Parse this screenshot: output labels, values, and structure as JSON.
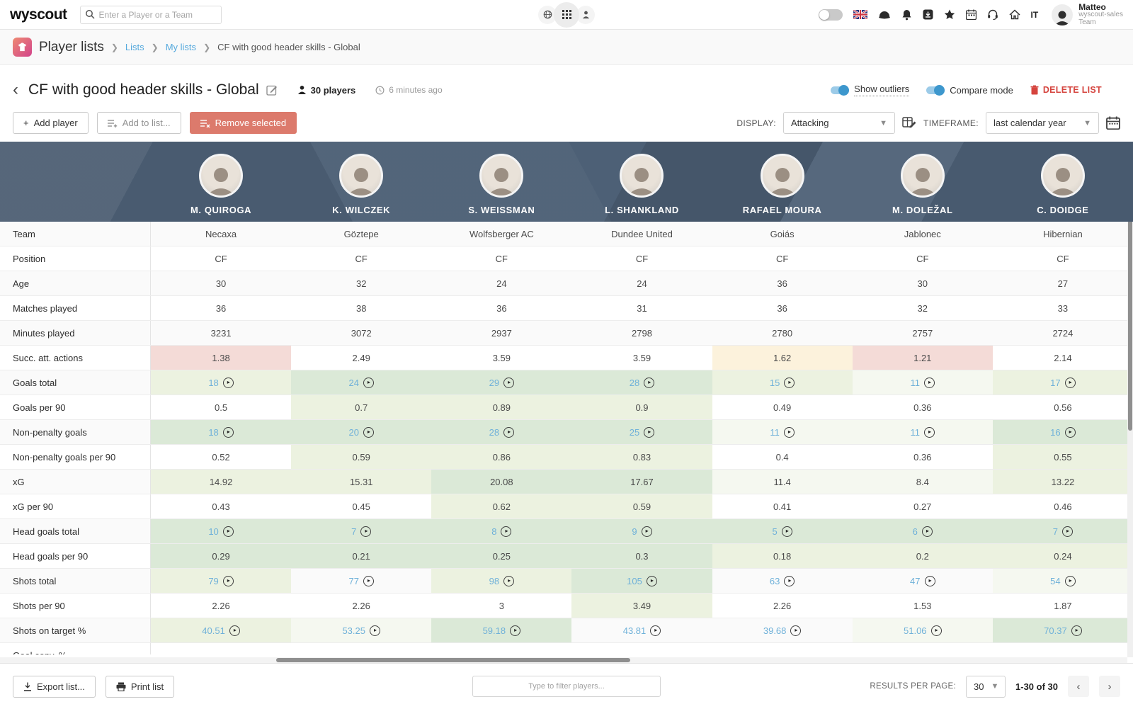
{
  "topbar": {
    "logo": "wyscout",
    "search_placeholder": "Enter a Player or a Team",
    "lang": "IT",
    "user": {
      "name": "Matteo",
      "org_line1": "wyscout-sales",
      "org_line2": "Team"
    }
  },
  "breadcrumb": {
    "root": "Player lists",
    "link1": "Lists",
    "link2": "My lists",
    "current": "CF with good header skills - Global"
  },
  "listheader": {
    "title": "CF with good header skills - Global",
    "players_count": "30 players",
    "updated": "6 minutes ago",
    "show_outliers": "Show outliers",
    "compare_mode": "Compare mode",
    "delete_list": "DELETE LIST"
  },
  "toolbar": {
    "add_player": "Add player",
    "add_plus": "+",
    "add_to_list": "Add to list...",
    "remove_selected": "Remove selected",
    "display_label": "DISPLAY:",
    "display_value": "Attacking",
    "timeframe_label": "TIMEFRAME:",
    "timeframe_value": "last calendar year"
  },
  "table": {
    "players": [
      {
        "name": "M. QUIROGA"
      },
      {
        "name": "K. WILCZEK"
      },
      {
        "name": "S. WEISSMAN"
      },
      {
        "name": "L. SHANKLAND"
      },
      {
        "name": "RAFAEL MOURA"
      },
      {
        "name": "M. DOLEŽAL"
      },
      {
        "name": "C. DOIDGE"
      }
    ],
    "rows": [
      {
        "label": "Team",
        "link": false,
        "values": [
          "Necaxa",
          "Göztepe",
          "Wolfsberger AC",
          "Dundee United",
          "Goiás",
          "Jablonec",
          "Hibernian"
        ],
        "tints": [
          "w",
          "w",
          "w",
          "w",
          "w",
          "w",
          "w"
        ]
      },
      {
        "label": "Position",
        "link": false,
        "values": [
          "CF",
          "CF",
          "CF",
          "CF",
          "CF",
          "CF",
          "CF"
        ],
        "tints": [
          "w",
          "w",
          "w",
          "w",
          "w",
          "w",
          "w"
        ]
      },
      {
        "label": "Age",
        "link": false,
        "values": [
          "30",
          "32",
          "24",
          "24",
          "36",
          "30",
          "27"
        ],
        "tints": [
          "w",
          "w",
          "w",
          "w",
          "w",
          "w",
          "w"
        ]
      },
      {
        "label": "Matches played",
        "link": false,
        "values": [
          "36",
          "38",
          "36",
          "31",
          "36",
          "32",
          "33"
        ],
        "tints": [
          "w",
          "w",
          "w",
          "w",
          "w",
          "w",
          "w"
        ]
      },
      {
        "label": "Minutes played",
        "link": false,
        "values": [
          "3231",
          "3072",
          "2937",
          "2798",
          "2780",
          "2757",
          "2724"
        ],
        "tints": [
          "w",
          "w",
          "w",
          "w",
          "w",
          "w",
          "w"
        ]
      },
      {
        "label": "Succ. att. actions",
        "link": false,
        "values": [
          "1.38",
          "2.49",
          "3.59",
          "3.59",
          "1.62",
          "1.21",
          "2.14"
        ],
        "tints": [
          "pk",
          "w",
          "w",
          "w",
          "yl",
          "pk",
          "w"
        ]
      },
      {
        "label": "Goals total",
        "link": true,
        "values": [
          "18",
          "24",
          "29",
          "28",
          "15",
          "11",
          "17"
        ],
        "tints": [
          "g1",
          "g2",
          "g2",
          "g2",
          "g1",
          "g0",
          "g1"
        ]
      },
      {
        "label": "Goals per 90",
        "link": false,
        "values": [
          "0.5",
          "0.7",
          "0.89",
          "0.9",
          "0.49",
          "0.36",
          "0.56"
        ],
        "tints": [
          "w",
          "g1",
          "g1",
          "g1",
          "w",
          "w",
          "w"
        ]
      },
      {
        "label": "Non-penalty goals",
        "link": true,
        "values": [
          "18",
          "20",
          "28",
          "25",
          "11",
          "11",
          "16"
        ],
        "tints": [
          "g2",
          "g2",
          "g2",
          "g2",
          "g0",
          "g0",
          "g2"
        ]
      },
      {
        "label": "Non-penalty goals per 90",
        "link": false,
        "values": [
          "0.52",
          "0.59",
          "0.86",
          "0.83",
          "0.4",
          "0.36",
          "0.55"
        ],
        "tints": [
          "w",
          "g1",
          "g1",
          "g1",
          "w",
          "w",
          "g1"
        ]
      },
      {
        "label": "xG",
        "link": false,
        "values": [
          "14.92",
          "15.31",
          "20.08",
          "17.67",
          "11.4",
          "8.4",
          "13.22"
        ],
        "tints": [
          "g1",
          "g1",
          "g2",
          "g2",
          "g0",
          "g0",
          "g1"
        ]
      },
      {
        "label": "xG per 90",
        "link": false,
        "values": [
          "0.43",
          "0.45",
          "0.62",
          "0.59",
          "0.41",
          "0.27",
          "0.46"
        ],
        "tints": [
          "w",
          "w",
          "g1",
          "g1",
          "w",
          "w",
          "w"
        ]
      },
      {
        "label": "Head goals total",
        "link": true,
        "values": [
          "10",
          "7",
          "8",
          "9",
          "5",
          "6",
          "7"
        ],
        "tints": [
          "g2",
          "g2",
          "g2",
          "g2",
          "g2",
          "g2",
          "g2"
        ]
      },
      {
        "label": "Head goals per 90",
        "link": false,
        "values": [
          "0.29",
          "0.21",
          "0.25",
          "0.3",
          "0.18",
          "0.2",
          "0.24"
        ],
        "tints": [
          "g2",
          "g2",
          "g2",
          "g2",
          "g1",
          "g1",
          "g1"
        ]
      },
      {
        "label": "Shots total",
        "link": true,
        "values": [
          "79",
          "77",
          "98",
          "105",
          "63",
          "47",
          "54"
        ],
        "tints": [
          "g1",
          "w",
          "g1",
          "g2",
          "w",
          "w",
          "g0"
        ]
      },
      {
        "label": "Shots per 90",
        "link": false,
        "values": [
          "2.26",
          "2.26",
          "3",
          "3.49",
          "2.26",
          "1.53",
          "1.87"
        ],
        "tints": [
          "w",
          "w",
          "w",
          "g1",
          "w",
          "w",
          "w"
        ]
      },
      {
        "label": "Shots on target %",
        "link": true,
        "values": [
          "40.51",
          "53.25",
          "59.18",
          "43.81",
          "39.68",
          "51.06",
          "70.37"
        ],
        "tints": [
          "g1",
          "g0",
          "g2",
          "w",
          "w",
          "g0",
          "g2"
        ]
      }
    ],
    "partial_row_label": "Goal conv. %"
  },
  "footer": {
    "export": "Export list...",
    "print": "Print list",
    "filter_placeholder": "Type to filter players...",
    "results_label": "RESULTS PER PAGE:",
    "results_value": "30",
    "range": "1-30 of 30"
  },
  "colors": {
    "accent_blue": "#3d97cd",
    "link_blue": "#6fb1d9",
    "danger": "#dc7a6c",
    "delete_red": "#d5443e",
    "strip_bg": "#4d6076",
    "tint_green_strong": "#dbe9d7",
    "tint_green_light": "#ecf2e0",
    "tint_pink": "#f4dbd7",
    "tint_yellow": "#fcf2dc"
  }
}
